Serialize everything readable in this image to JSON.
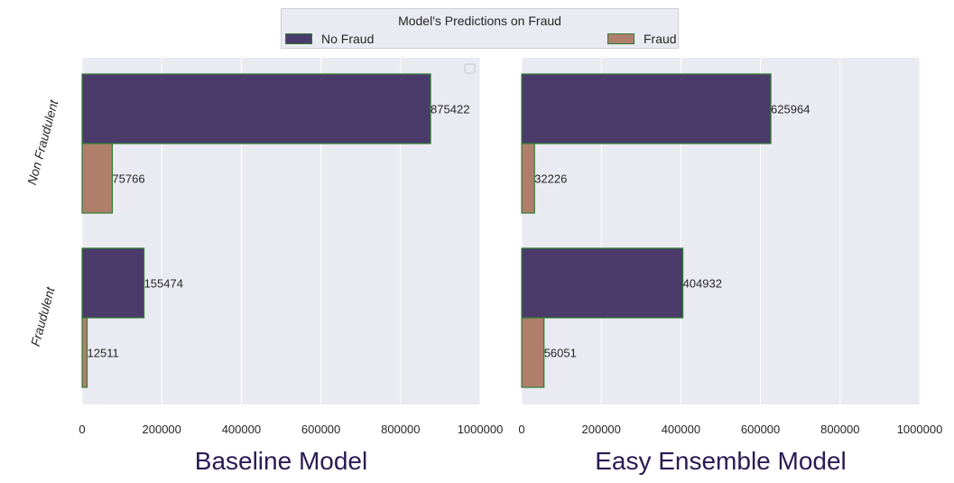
{
  "legend": {
    "title": "Model's Predictions on Fraud",
    "entries": [
      {
        "label": "No Fraud",
        "color": "#4b3b6b"
      },
      {
        "label": "Fraud",
        "color": "#b07f6c"
      }
    ]
  },
  "colors": {
    "plot_background": "#eaeaf2",
    "grid": "#ffffff",
    "bar_edge": "#2e7d32",
    "title": "#2a1b54"
  },
  "chart_data": [
    {
      "type": "bar",
      "orientation": "horizontal",
      "title": "Baseline Model",
      "categories": [
        "Non Fraudulent",
        "Fraudulent"
      ],
      "series": [
        {
          "name": "No Fraud",
          "values": [
            875422,
            155474
          ]
        },
        {
          "name": "Fraud",
          "values": [
            75766,
            12511
          ]
        }
      ],
      "xlim": [
        0,
        1000000
      ],
      "xticks": [
        "0",
        "200000",
        "400000",
        "600000",
        "800000",
        "1000000"
      ],
      "grid": true
    },
    {
      "type": "bar",
      "orientation": "horizontal",
      "title": "Easy Ensemble Model",
      "categories": [
        "Non Fraudulent",
        "Fraudulent"
      ],
      "series": [
        {
          "name": "No Fraud",
          "values": [
            625964,
            404932
          ]
        },
        {
          "name": "Fraud",
          "values": [
            32226,
            56051
          ]
        }
      ],
      "xlim": [
        0,
        1000000
      ],
      "xticks": [
        "0",
        "200000",
        "400000",
        "600000",
        "800000",
        "1000000"
      ],
      "grid": true
    }
  ]
}
